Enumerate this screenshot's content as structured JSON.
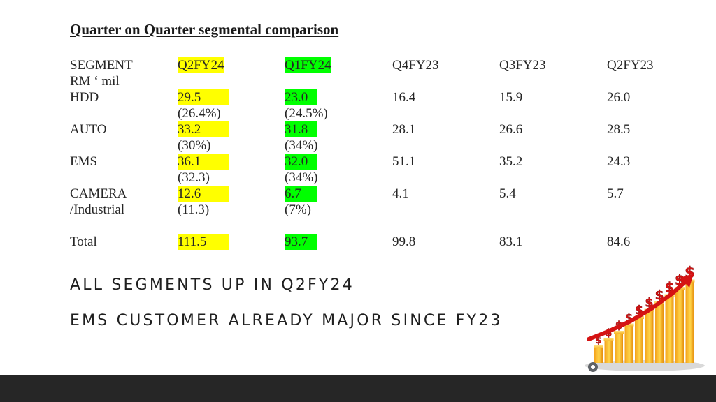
{
  "title": "Quarter on Quarter segmental comparison",
  "table": {
    "headers": [
      "SEGMENT",
      "Q2FY24",
      "Q1FY24",
      "Q4FY23",
      "Q3FY23",
      "Q2FY23"
    ],
    "unit": "RM ‘ mil",
    "rows": [
      {
        "segment": "HDD",
        "values": [
          "29.5",
          "23.0",
          "16.4",
          "15.9",
          "26.0"
        ],
        "shares": [
          "(26.4%)",
          "(24.5%)"
        ]
      },
      {
        "segment": "AUTO",
        "values": [
          "33.2",
          "31.8",
          "28.1",
          "26.6",
          "28.5"
        ],
        "shares": [
          "(30%)",
          "(34%)"
        ]
      },
      {
        "segment": "EMS",
        "values": [
          "36.1",
          "32.0",
          "51.1",
          "35.2",
          "24.3"
        ],
        "shares": [
          "(32.3)",
          "(34%)"
        ]
      },
      {
        "segment": "CAMERA",
        "segment_line2": "/Industrial",
        "values": [
          "12.6",
          "6.7",
          "4.1",
          "5.4",
          "5.7"
        ],
        "shares": [
          "(11.3)",
          "(7%)"
        ]
      }
    ],
    "total": {
      "label": "Total",
      "values": [
        "111.5",
        "93.7",
        "99.8",
        "83.1",
        "84.6"
      ]
    }
  },
  "bullets": [
    "ALL SEGMENTS UP IN Q2FY24",
    "EMS CUSTOMER ALREADY MAJOR SINCE FY23"
  ],
  "colors": {
    "highlight_current": "#ffff00",
    "highlight_previous": "#00ff00",
    "footer": "#262626"
  },
  "illustration": "rising-dollar-bar-chart-icon"
}
